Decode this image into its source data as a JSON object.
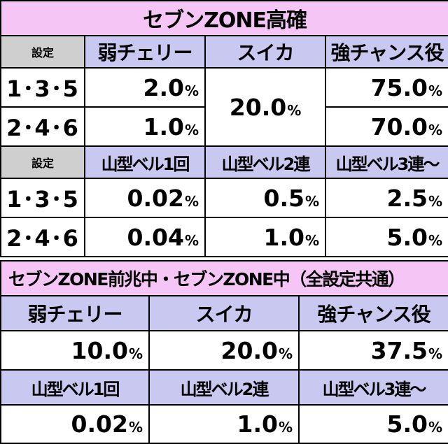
{
  "section1": {
    "title": "セブンZONE高確",
    "setting_label": "設定",
    "headers_a": [
      "弱チェリー",
      "スイカ",
      "強チャンス役"
    ],
    "headers_b": [
      "山型ベル1回",
      "山型ベル2連",
      "山型ベル3連〜"
    ],
    "rows_a": [
      {
        "setting": "1･3･5",
        "weak_cherry": "2.0",
        "suika": "20.0",
        "strong_chance": "75.0"
      },
      {
        "setting": "2･4･6",
        "weak_cherry": "1.0",
        "strong_chance": "70.0"
      }
    ],
    "rows_b": [
      {
        "setting": "1･3･5",
        "bell1": "0.02",
        "bell2": "0.5",
        "bell3": "2.5"
      },
      {
        "setting": "2･4･6",
        "bell1": "0.04",
        "bell2": "1.0",
        "bell3": "5.0"
      }
    ],
    "unit": "%"
  },
  "section2": {
    "title": "セブンZONE前兆中・セブンZONE中（全設定共通）",
    "headers_a": [
      "弱チェリー",
      "スイカ",
      "強チャンス役"
    ],
    "values_a": [
      "10.0",
      "20.0",
      "37.5"
    ],
    "headers_b": [
      "山型ベル1回",
      "山型ベル2連",
      "山型ベル3連〜"
    ],
    "values_b": [
      "0.02",
      "1.0",
      "5.0"
    ],
    "unit": "%"
  }
}
